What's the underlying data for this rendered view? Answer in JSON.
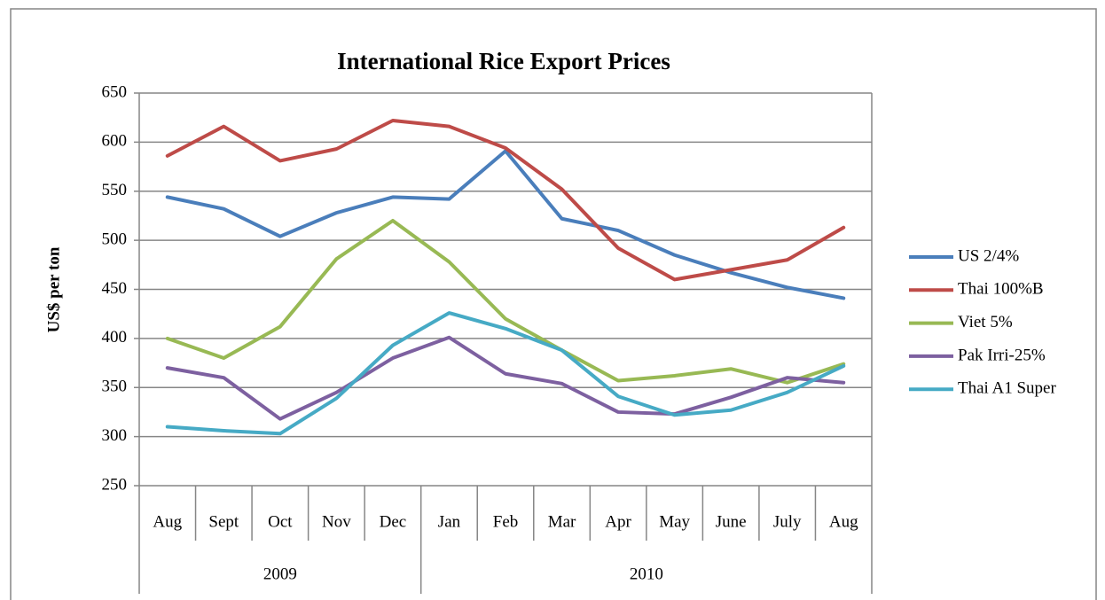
{
  "chart_data": {
    "type": "line",
    "title": "International Rice Export Prices",
    "y_label": "US$ per ton",
    "categories": [
      "Aug",
      "Sept",
      "Oct",
      "Nov",
      "Dec",
      "Jan",
      "Feb",
      "Mar",
      "Apr",
      "May",
      "June",
      "July",
      "Aug"
    ],
    "category_groups": [
      "2009",
      null,
      null,
      null,
      null,
      "2010",
      null,
      null,
      null,
      null,
      null,
      null,
      null
    ],
    "ylim": [
      250,
      650
    ],
    "yticks": [
      250,
      300,
      350,
      400,
      450,
      500,
      550,
      600,
      650
    ],
    "grid": true,
    "legend": "right",
    "series": [
      {
        "name": "US 2/4%",
        "color": "#4a7ebb",
        "values": [
          544,
          532,
          504,
          528,
          544,
          542,
          591,
          522,
          510,
          485,
          467,
          452,
          441
        ]
      },
      {
        "name": "Thai 100%B",
        "color": "#be4b48",
        "values": [
          586,
          616,
          581,
          593,
          622,
          616,
          594,
          552,
          492,
          460,
          470,
          480,
          513
        ]
      },
      {
        "name": "Viet 5%",
        "color": "#98b954",
        "values": [
          400,
          380,
          412,
          481,
          520,
          478,
          420,
          388,
          357,
          362,
          369,
          355,
          374
        ]
      },
      {
        "name": "Pak Irri-25%",
        "color": "#7d60a0",
        "values": [
          370,
          360,
          318,
          345,
          380,
          401,
          364,
          354,
          325,
          323,
          340,
          360,
          355
        ]
      },
      {
        "name": "Thai A1 Super",
        "color": "#46aac5",
        "values": [
          310,
          306,
          303,
          339,
          393,
          426,
          410,
          388,
          341,
          322,
          327,
          345,
          372
        ]
      }
    ]
  }
}
